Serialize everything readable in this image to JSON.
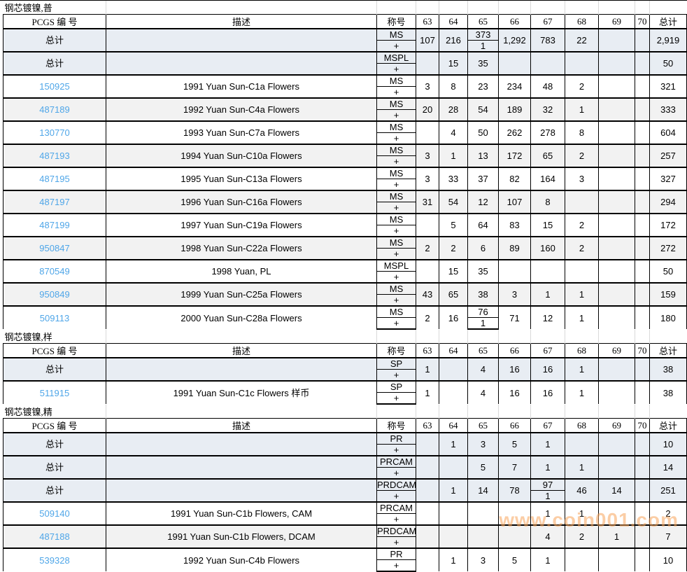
{
  "watermark_text": "www.coin001.com",
  "colors": {
    "link": "#4fa6e8",
    "total_row_bg": "#e8edf3",
    "alt_row_bg": "#f2f2f2",
    "white_row_bg": "#ffffff",
    "watermark": "#f8a65c"
  },
  "table_headers": {
    "pcgs_number": "PCGS 编 号",
    "description": "描述",
    "designation": "称号",
    "grades": [
      "63",
      "64",
      "65",
      "66",
      "67",
      "68",
      "69",
      "70"
    ],
    "total": "总计"
  },
  "plus_label": "+",
  "total_label": "总计",
  "sections": [
    {
      "title": "钢芯镀镍,普",
      "rows": [
        {
          "pcgs": "总计",
          "is_total": true,
          "desc": "",
          "designation": "MS",
          "values": [
            "107",
            "216",
            [
              "373",
              "1"
            ],
            "1,292",
            "783",
            "22",
            "",
            "",
            "2,919"
          ]
        },
        {
          "pcgs": "总计",
          "is_total": true,
          "desc": "",
          "designation": "MSPL",
          "values": [
            "",
            "15",
            "35",
            "",
            "",
            "",
            "",
            "",
            "50"
          ]
        },
        {
          "pcgs": "150925",
          "is_total": false,
          "desc": "1991 Yuan Sun-C1a Flowers",
          "designation": "MS",
          "values": [
            "3",
            "8",
            "23",
            "234",
            "48",
            "2",
            "",
            "",
            "321"
          ]
        },
        {
          "pcgs": "487189",
          "is_total": false,
          "desc": "1992 Yuan Sun-C4a Flowers",
          "designation": "MS",
          "values": [
            "20",
            "28",
            "54",
            "189",
            "32",
            "1",
            "",
            "",
            "333"
          ]
        },
        {
          "pcgs": "130770",
          "is_total": false,
          "desc": "1993 Yuan Sun-C7a Flowers",
          "designation": "MS",
          "values": [
            "",
            "4",
            "50",
            "262",
            "278",
            "8",
            "",
            "",
            "604"
          ]
        },
        {
          "pcgs": "487193",
          "is_total": false,
          "desc": "1994 Yuan Sun-C10a Flowers",
          "designation": "MS",
          "values": [
            "3",
            "1",
            "13",
            "172",
            "65",
            "2",
            "",
            "",
            "257"
          ]
        },
        {
          "pcgs": "487195",
          "is_total": false,
          "desc": "1995 Yuan Sun-C13a Flowers",
          "designation": "MS",
          "values": [
            "3",
            "33",
            "37",
            "82",
            "164",
            "3",
            "",
            "",
            "327"
          ]
        },
        {
          "pcgs": "487197",
          "is_total": false,
          "desc": "1996 Yuan Sun-C16a Flowers",
          "designation": "MS",
          "values": [
            "31",
            "54",
            "12",
            "107",
            "8",
            "",
            "",
            "",
            "294"
          ]
        },
        {
          "pcgs": "487199",
          "is_total": false,
          "desc": "1997 Yuan Sun-C19a Flowers",
          "designation": "MS",
          "values": [
            "",
            "5",
            "64",
            "83",
            "15",
            "2",
            "",
            "",
            "172"
          ]
        },
        {
          "pcgs": "950847",
          "is_total": false,
          "desc": "1998 Yuan Sun-C22a Flowers",
          "designation": "MS",
          "values": [
            "2",
            "2",
            "6",
            "89",
            "160",
            "2",
            "",
            "",
            "272"
          ]
        },
        {
          "pcgs": "870549",
          "is_total": false,
          "desc": "1998 Yuan, PL",
          "designation": "MSPL",
          "values": [
            "",
            "15",
            "35",
            "",
            "",
            "",
            "",
            "",
            "50"
          ]
        },
        {
          "pcgs": "950849",
          "is_total": false,
          "desc": "1999 Yuan Sun-C25a Flowers",
          "designation": "MS",
          "values": [
            "43",
            "65",
            "38",
            "3",
            "1",
            "1",
            "",
            "",
            "159"
          ]
        },
        {
          "pcgs": "509113",
          "is_total": false,
          "desc": "2000 Yuan Sun-C28a Flowers",
          "designation": "MS",
          "values": [
            "2",
            "16",
            [
              "76",
              "1"
            ],
            "71",
            "12",
            "1",
            "",
            "",
            "180"
          ]
        }
      ]
    },
    {
      "title": "钢芯镀镍,样",
      "rows": [
        {
          "pcgs": "总计",
          "is_total": true,
          "desc": "",
          "designation": "SP",
          "values": [
            "1",
            "",
            "4",
            "16",
            "16",
            "1",
            "",
            "",
            "38"
          ]
        },
        {
          "pcgs": "511915",
          "is_total": false,
          "desc": "1991 Yuan Sun-C1c Flowers 样币",
          "designation": "SP",
          "values": [
            "1",
            "",
            "4",
            "16",
            "16",
            "1",
            "",
            "",
            "38"
          ]
        }
      ]
    },
    {
      "title": "钢芯镀镍,精",
      "rows": [
        {
          "pcgs": "总计",
          "is_total": true,
          "desc": "",
          "designation": "PR",
          "values": [
            "",
            "1",
            "3",
            "5",
            "1",
            "",
            "",
            "",
            "10"
          ]
        },
        {
          "pcgs": "总计",
          "is_total": true,
          "desc": "",
          "designation": "PRCAM",
          "values": [
            "",
            "",
            "5",
            "7",
            "1",
            "1",
            "",
            "",
            "14"
          ]
        },
        {
          "pcgs": "总计",
          "is_total": true,
          "desc": "",
          "designation": "PRDCAM",
          "values": [
            "",
            "1",
            "14",
            "78",
            [
              "97",
              "1"
            ],
            "46",
            "14",
            "",
            "251"
          ]
        },
        {
          "pcgs": "509140",
          "is_total": false,
          "desc": "1991 Yuan Sun-C1b Flowers, CAM",
          "designation": "PRCAM",
          "values": [
            "",
            "",
            "",
            "",
            "1",
            "1",
            "",
            "",
            "2"
          ]
        },
        {
          "pcgs": "487188",
          "is_total": false,
          "desc": "1991 Yuan Sun-C1b Flowers, DCAM",
          "designation": "PRDCAM",
          "values": [
            "",
            "",
            "",
            "",
            "4",
            "2",
            "1",
            "",
            "7"
          ]
        },
        {
          "pcgs": "539328",
          "is_total": false,
          "desc": "1992 Yuan Sun-C4b Flowers",
          "designation": "PR",
          "values": [
            "",
            "1",
            "3",
            "5",
            "1",
            "",
            "",
            "",
            "10"
          ]
        }
      ]
    }
  ]
}
